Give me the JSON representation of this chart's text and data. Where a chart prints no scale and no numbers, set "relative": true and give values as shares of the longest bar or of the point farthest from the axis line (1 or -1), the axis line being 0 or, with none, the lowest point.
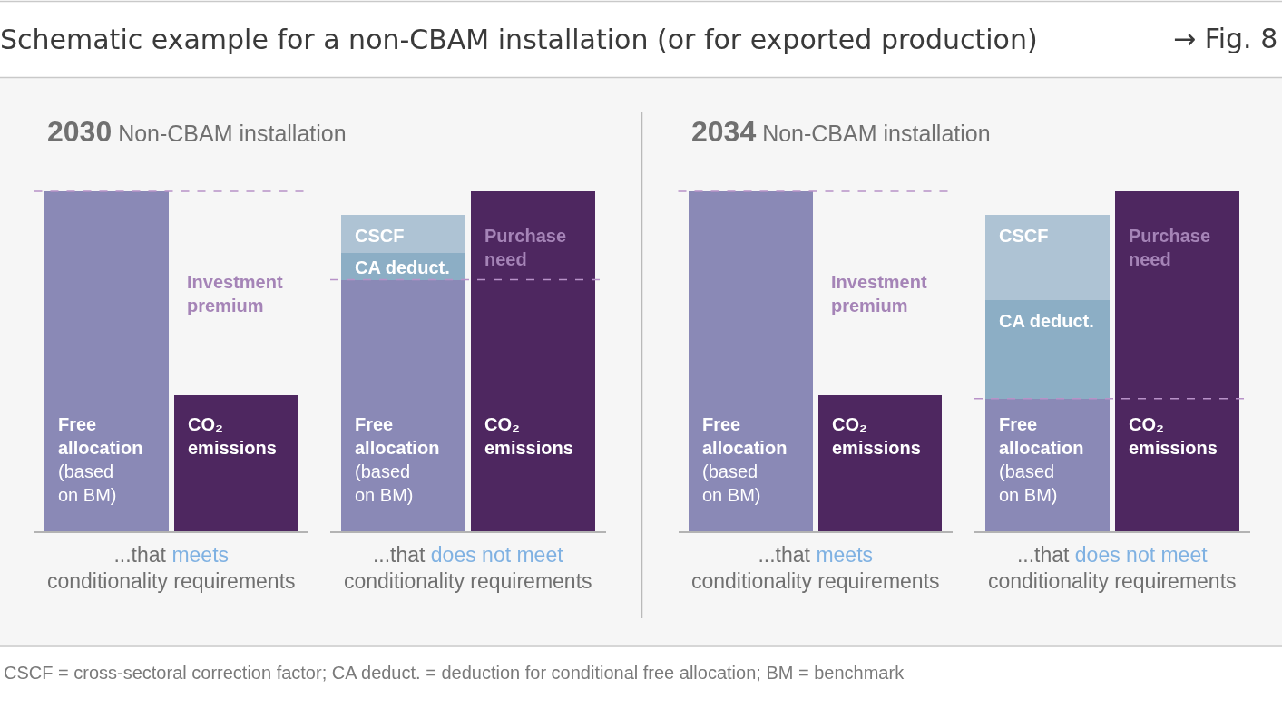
{
  "chart_data": [
    {
      "type": "bar",
      "stacked": true,
      "relative": true,
      "title": "Schematic example for a non-CBAM installation (or for exported production)",
      "subtitle": "2030 Non-CBAM installation",
      "xlabel": "...that meets\nconditionality requirements",
      "categories": [
        null,
        null
      ],
      "series": [
        {
          "name": "Free\nallocation\n(based\non BM)",
          "color": "#8a89b6",
          "values": [
            1,
            null
          ]
        },
        {
          "name": "CO₂\nemissions",
          "color": "#4e2760",
          "values": [
            null,
            0.4
          ]
        }
      ],
      "ref_lines": [
        {
          "axis": "y",
          "value": 1,
          "color": "#b892c8",
          "line_style": "dashed"
        }
      ],
      "annotations": [
        "→ Fig. 8",
        "Investment\npremium",
        "CSCF = cross-sectoral correction factor; CA deduct. = deduction for conditional free allocation; BM = benchmark"
      ]
    },
    {
      "type": "bar",
      "stacked": true,
      "relative": true,
      "xlabel": "...that does not meet\nconditionality requirements",
      "categories": [
        null,
        null
      ],
      "series": [
        {
          "name": "Free\nallocation\n(based\non BM)",
          "color": "#8a89b6",
          "values": [
            0.74,
            null
          ]
        },
        {
          "name": "CO₂\nemissions",
          "color": "#4e2760",
          "values": [
            null,
            0.74
          ]
        },
        {
          "name": "CA deduct.",
          "color": "#8caec5",
          "values": [
            0.08,
            null
          ]
        },
        {
          "name": "CSCF",
          "color": "#aec3d4",
          "values": [
            0.11,
            null
          ]
        },
        {
          "name": "Purchase\nneed",
          "color": "#4e2760",
          "values": [
            null,
            0.26
          ]
        }
      ],
      "ref_lines": [
        {
          "axis": "y",
          "value": 0.74,
          "color": "#b892c8",
          "line_style": "dashed"
        }
      ]
    },
    {
      "type": "bar",
      "stacked": true,
      "relative": true,
      "subtitle": "2034 Non-CBAM installation",
      "xlabel": "...that meets\nconditionality requirements",
      "categories": [
        null,
        null
      ],
      "series": [
        {
          "name": "Free\nallocation\n(based\non BM)",
          "color": "#8a89b6",
          "values": [
            1,
            null
          ]
        },
        {
          "name": "CO₂\nemissions",
          "color": "#4e2760",
          "values": [
            null,
            0.4
          ]
        }
      ],
      "ref_lines": [
        {
          "axis": "y",
          "value": 1,
          "color": "#b892c8",
          "line_style": "dashed"
        }
      ],
      "annotations": [
        "Investment\npremium"
      ]
    },
    {
      "type": "bar",
      "stacked": true,
      "relative": true,
      "xlabel": "...that does not meet\nconditionality requirements",
      "categories": [
        null,
        null
      ],
      "series": [
        {
          "name": "Free\nallocation\n(based\non BM)",
          "color": "#8a89b6",
          "values": [
            0.39,
            null
          ]
        },
        {
          "name": "CO₂\nemissions",
          "color": "#4e2760",
          "values": [
            null,
            0.39
          ]
        },
        {
          "name": "CA deduct.",
          "color": "#8caec5",
          "values": [
            0.29,
            null
          ]
        },
        {
          "name": "CSCF",
          "color": "#aec3d4",
          "values": [
            0.25,
            null
          ]
        },
        {
          "name": "Purchase\nneed",
          "color": "#4e2760",
          "values": [
            null,
            0.61
          ]
        }
      ],
      "ref_lines": [
        {
          "axis": "y",
          "value": 0.39,
          "color": "#b892c8",
          "line_style": "dashed"
        }
      ]
    }
  ]
}
